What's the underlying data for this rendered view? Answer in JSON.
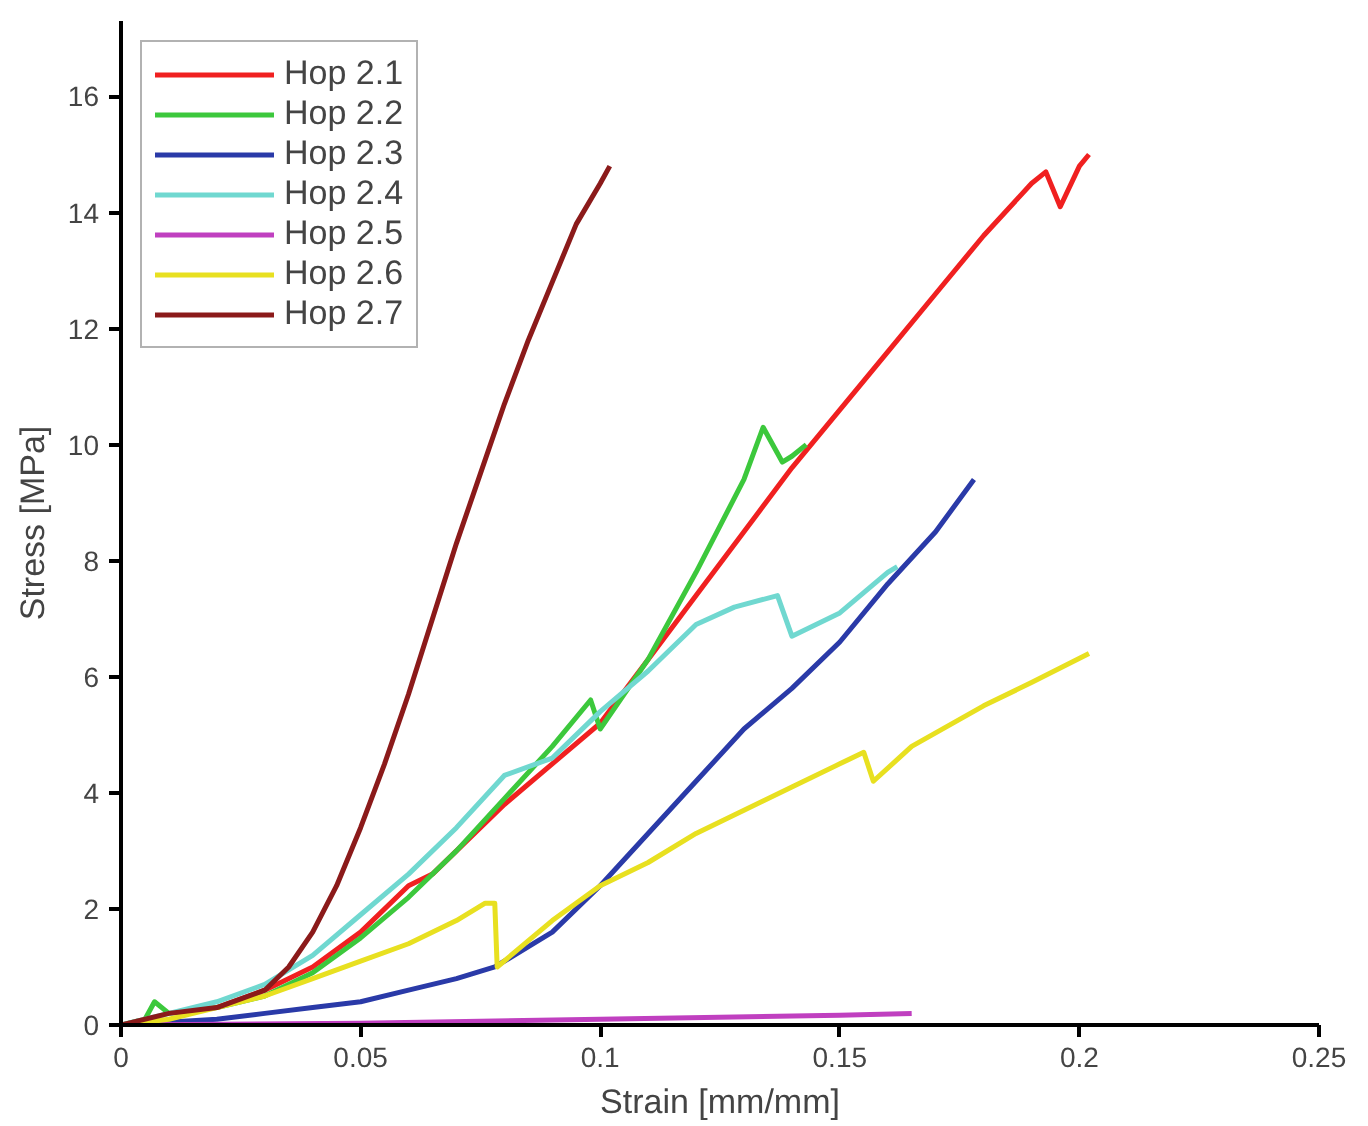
{
  "chart_data": {
    "type": "line",
    "xlabel": "Strain [mm/mm]",
    "ylabel": "Stress [MPa]",
    "xlim": [
      0,
      0.25
    ],
    "ylim": [
      0,
      17.3
    ],
    "xticks": [
      0,
      0.05,
      0.1,
      0.15,
      0.2,
      0.25
    ],
    "yticks": [
      0,
      2,
      4,
      6,
      8,
      10,
      12,
      14,
      16
    ],
    "grid": false,
    "legend": "top left",
    "marker": "none",
    "line_style": "solid",
    "series": [
      {
        "name": "Hop 2.1",
        "color": "#f02020",
        "x": [
          0.02,
          0.03,
          0.04,
          0.05,
          0.06,
          0.065,
          0.07,
          0.08,
          0.09,
          0.1,
          0.11,
          0.12,
          0.13,
          0.14,
          0.15,
          0.16,
          0.17,
          0.18,
          0.19,
          0.193,
          0.196,
          0.2,
          0.202
        ],
        "values": [
          0.3,
          0.6,
          1.0,
          1.6,
          2.4,
          2.6,
          3.0,
          3.8,
          4.5,
          5.2,
          6.3,
          7.4,
          8.5,
          9.6,
          10.6,
          11.6,
          12.6,
          13.6,
          14.5,
          14.7,
          14.1,
          14.8,
          15.0
        ]
      },
      {
        "name": "Hop 2.2",
        "color": "#3cc83c",
        "x": [
          0,
          0.005,
          0.007,
          0.01,
          0.02,
          0.03,
          0.04,
          0.05,
          0.06,
          0.07,
          0.08,
          0.09,
          0.098,
          0.1,
          0.11,
          0.12,
          0.13,
          0.134,
          0.138,
          0.14,
          0.143
        ],
        "values": [
          0,
          0.1,
          0.4,
          0.2,
          0.3,
          0.5,
          0.9,
          1.5,
          2.2,
          3.0,
          3.9,
          4.8,
          5.6,
          5.1,
          6.3,
          7.8,
          9.4,
          10.3,
          9.7,
          9.8,
          10.0
        ]
      },
      {
        "name": "Hop 2.3",
        "color": "#2a3aa8",
        "x": [
          0,
          0.02,
          0.03,
          0.04,
          0.05,
          0.06,
          0.07,
          0.078,
          0.09,
          0.1,
          0.11,
          0.12,
          0.13,
          0.14,
          0.15,
          0.16,
          0.17,
          0.178
        ],
        "values": [
          0,
          0.1,
          0.2,
          0.3,
          0.4,
          0.6,
          0.8,
          1.0,
          1.6,
          2.4,
          3.3,
          4.2,
          5.1,
          5.8,
          6.6,
          7.6,
          8.5,
          9.4
        ]
      },
      {
        "name": "Hop 2.4",
        "color": "#70d8d0",
        "x": [
          0,
          0.01,
          0.02,
          0.03,
          0.04,
          0.05,
          0.06,
          0.07,
          0.08,
          0.09,
          0.1,
          0.11,
          0.12,
          0.128,
          0.137,
          0.14,
          0.15,
          0.16,
          0.162
        ],
        "values": [
          0,
          0.2,
          0.4,
          0.7,
          1.2,
          1.9,
          2.6,
          3.4,
          4.3,
          4.6,
          5.4,
          6.1,
          6.9,
          7.2,
          7.4,
          6.7,
          7.1,
          7.8,
          7.9
        ]
      },
      {
        "name": "Hop 2.5",
        "color": "#c040c0",
        "x": [
          0,
          0.05,
          0.1,
          0.15,
          0.165
        ],
        "values": [
          0,
          0.03,
          0.1,
          0.17,
          0.2
        ]
      },
      {
        "name": "Hop 2.6",
        "color": "#e8e020",
        "x": [
          0,
          0.01,
          0.02,
          0.03,
          0.04,
          0.05,
          0.06,
          0.07,
          0.076,
          0.078,
          0.0785,
          0.09,
          0.1,
          0.11,
          0.12,
          0.13,
          0.14,
          0.15,
          0.155,
          0.157,
          0.165,
          0.18,
          0.19,
          0.202
        ],
        "values": [
          0,
          0.1,
          0.3,
          0.5,
          0.8,
          1.1,
          1.4,
          1.8,
          2.1,
          2.1,
          1.0,
          1.8,
          2.4,
          2.8,
          3.3,
          3.7,
          4.1,
          4.5,
          4.7,
          4.2,
          4.8,
          5.5,
          5.9,
          6.4
        ]
      },
      {
        "name": "Hop 2.7",
        "color": "#8b1a1a",
        "x": [
          0,
          0.01,
          0.02,
          0.03,
          0.035,
          0.04,
          0.045,
          0.05,
          0.055,
          0.06,
          0.065,
          0.07,
          0.075,
          0.08,
          0.085,
          0.09,
          0.095,
          0.1,
          0.102
        ],
        "values": [
          0,
          0.2,
          0.3,
          0.6,
          1.0,
          1.6,
          2.4,
          3.4,
          4.5,
          5.7,
          7.0,
          8.3,
          9.5,
          10.7,
          11.8,
          12.8,
          13.8,
          14.5,
          14.8
        ]
      }
    ]
  }
}
